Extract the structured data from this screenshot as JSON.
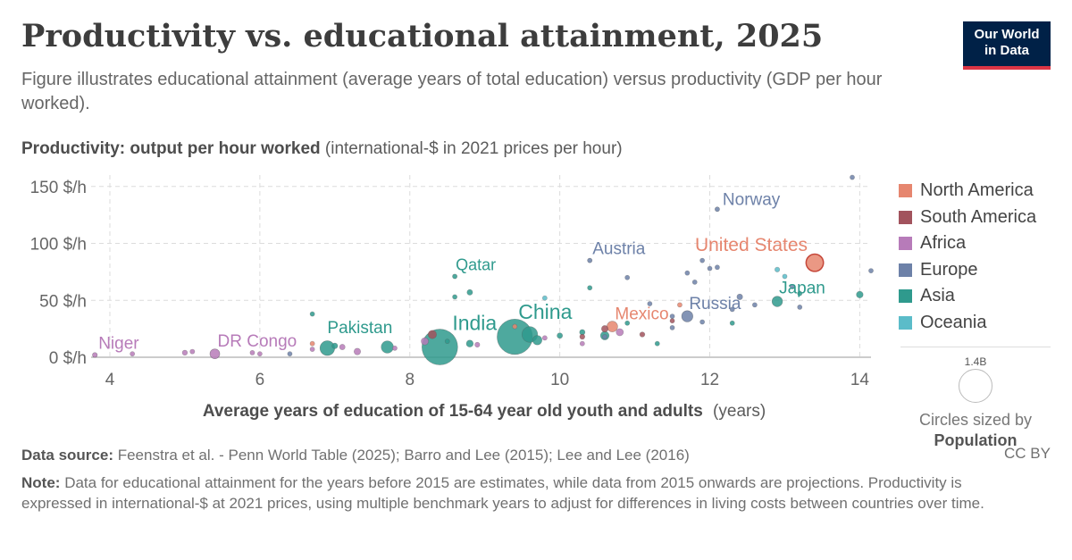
{
  "header": {
    "title": "Productivity vs. educational attainment, 2025",
    "subtitle": "Figure illustrates educational attainment (average years of total education) versus productivity (GDP per hour worked).",
    "logo_line1": "Our World",
    "logo_line2": "in Data"
  },
  "axis": {
    "y_label_bold": "Productivity: output per hour worked",
    "y_label_unit": "(international-$ in 2021 prices per hour)",
    "x_label_bold": "Average years of education of 15-64 year old youth and adults",
    "x_label_unit": "(years)"
  },
  "legend": {
    "items": [
      {
        "label": "North America",
        "color": "#e6866f"
      },
      {
        "label": "South America",
        "color": "#a2535d"
      },
      {
        "label": "Africa",
        "color": "#b77bb9"
      },
      {
        "label": "Europe",
        "color": "#6d81a8"
      },
      {
        "label": "Asia",
        "color": "#2f9a8d"
      },
      {
        "label": "Oceania",
        "color": "#5bbcc9"
      }
    ]
  },
  "size_key": {
    "value": "1.4B",
    "caption": "Circles sized by",
    "caption_bold": "Population"
  },
  "footer": {
    "source_label": "Data source:",
    "source_text": "Feenstra et al. - Penn World Table (2025); Barro and Lee (2015); Lee and Lee (2016)",
    "license": "CC BY",
    "note_label": "Note:",
    "note_text": "Data for educational attainment for the years before 2015 are estimates, while data from 2015 onwards are projections. Productivity is expressed in international-$ at 2021 prices, using multiple benchmark years to adjust for differences in living costs between countries over time."
  },
  "chart_data": {
    "type": "scatter",
    "xlim": [
      3.75,
      14.15
    ],
    "ylim": [
      0,
      160
    ],
    "x_ticks": [
      4,
      6,
      8,
      10,
      12,
      14
    ],
    "y_ticks": [
      {
        "value": 0,
        "label": "0 $/h"
      },
      {
        "value": 50,
        "label": "50 $/h"
      },
      {
        "value": 100,
        "label": "100 $/h"
      },
      {
        "value": 150,
        "label": "150 $/h"
      }
    ],
    "grid": true,
    "legend_position": "right",
    "region_colors": {
      "North America": "#e6866f",
      "South America": "#a2535d",
      "Africa": "#b77bb9",
      "Europe": "#6d81a8",
      "Asia": "#2f9a8d",
      "Oceania": "#5bbcc9"
    },
    "points": [
      {
        "label": "Niger",
        "region": "Africa",
        "x": 3.8,
        "y": 2,
        "pop": 27
      },
      {
        "label": "DR Congo",
        "region": "Africa",
        "x": 5.4,
        "y": 3,
        "pop": 110
      },
      {
        "label": "Pakistan",
        "region": "Asia",
        "x": 6.9,
        "y": 8,
        "pop": 245
      },
      {
        "label": "India",
        "region": "Asia",
        "x": 8.4,
        "y": 9,
        "pop": 1440
      },
      {
        "label": "Qatar",
        "region": "Asia",
        "x": 8.6,
        "y": 71,
        "pop": 3
      },
      {
        "label": "China",
        "region": "Asia",
        "x": 9.4,
        "y": 18,
        "pop": 1410
      },
      {
        "label": "Mexico",
        "region": "North America",
        "x": 10.7,
        "y": 27,
        "pop": 130
      },
      {
        "label": "Austria",
        "region": "Europe",
        "x": 10.4,
        "y": 85,
        "pop": 9
      },
      {
        "label": "Russia",
        "region": "Europe",
        "x": 11.7,
        "y": 36,
        "pop": 144
      },
      {
        "label": "Norway",
        "region": "Europe",
        "x": 12.1,
        "y": 130,
        "pop": 5.5
      },
      {
        "label": "United States",
        "region": "North America",
        "x": 13.4,
        "y": 83,
        "pop": 340
      },
      {
        "label": "Japan",
        "region": "Asia",
        "x": 12.9,
        "y": 49,
        "pop": 124
      },
      {
        "label": "",
        "region": "Africa",
        "x": 4.3,
        "y": 3,
        "pop": 20
      },
      {
        "label": "",
        "region": "Africa",
        "x": 5.0,
        "y": 4,
        "pop": 30
      },
      {
        "label": "",
        "region": "Africa",
        "x": 5.1,
        "y": 5,
        "pop": 25
      },
      {
        "label": "",
        "region": "Africa",
        "x": 5.9,
        "y": 4,
        "pop": 15
      },
      {
        "label": "",
        "region": "Africa",
        "x": 6.0,
        "y": 3,
        "pop": 12
      },
      {
        "label": "",
        "region": "Africa",
        "x": 6.7,
        "y": 7,
        "pop": 18
      },
      {
        "label": "",
        "region": "Africa",
        "x": 7.1,
        "y": 9,
        "pop": 35
      },
      {
        "label": "",
        "region": "Africa",
        "x": 7.3,
        "y": 5,
        "pop": 50
      },
      {
        "label": "",
        "region": "Africa",
        "x": 7.8,
        "y": 8,
        "pop": 22
      },
      {
        "label": "",
        "region": "Africa",
        "x": 8.2,
        "y": 14,
        "pop": 60
      },
      {
        "label": "",
        "region": "Africa",
        "x": 8.9,
        "y": 11,
        "pop": 28
      },
      {
        "label": "",
        "region": "Africa",
        "x": 9.8,
        "y": 17,
        "pop": 25
      },
      {
        "label": "",
        "region": "Africa",
        "x": 10.3,
        "y": 12,
        "pop": 12
      },
      {
        "label": "",
        "region": "Africa",
        "x": 10.8,
        "y": 22,
        "pop": 60
      },
      {
        "label": "",
        "region": "Asia",
        "x": 6.7,
        "y": 38,
        "pop": 10
      },
      {
        "label": "",
        "region": "Asia",
        "x": 7.0,
        "y": 10,
        "pop": 38
      },
      {
        "label": "",
        "region": "Asia",
        "x": 7.7,
        "y": 9,
        "pop": 170
      },
      {
        "label": "",
        "region": "Asia",
        "x": 8.5,
        "y": 14,
        "pop": 20
      },
      {
        "label": "",
        "region": "Asia",
        "x": 8.6,
        "y": 53,
        "pop": 4
      },
      {
        "label": "",
        "region": "Asia",
        "x": 8.8,
        "y": 57,
        "pop": 36
      },
      {
        "label": "",
        "region": "Asia",
        "x": 8.8,
        "y": 12,
        "pop": 55
      },
      {
        "label": "",
        "region": "Asia",
        "x": 9.7,
        "y": 15,
        "pop": 100
      },
      {
        "label": "",
        "region": "Asia",
        "x": 9.6,
        "y": 20,
        "pop": 280
      },
      {
        "label": "",
        "region": "Asia",
        "x": 10.0,
        "y": 19,
        "pop": 35
      },
      {
        "label": "",
        "region": "Asia",
        "x": 10.3,
        "y": 22,
        "pop": 34
      },
      {
        "label": "",
        "region": "Asia",
        "x": 10.4,
        "y": 61,
        "pop": 10
      },
      {
        "label": "",
        "region": "Asia",
        "x": 10.6,
        "y": 19,
        "pop": 85
      },
      {
        "label": "",
        "region": "Asia",
        "x": 10.9,
        "y": 30,
        "pop": 15
      },
      {
        "label": "",
        "region": "Asia",
        "x": 11.3,
        "y": 12,
        "pop": 20
      },
      {
        "label": "",
        "region": "Asia",
        "x": 12.3,
        "y": 30,
        "pop": 10
      },
      {
        "label": "",
        "region": "Asia",
        "x": 14.0,
        "y": 55,
        "pop": 52
      },
      {
        "label": "",
        "region": "Asia",
        "x": 13.2,
        "y": 56,
        "pop": 10
      },
      {
        "label": "",
        "region": "South America",
        "x": 8.3,
        "y": 20,
        "pop": 80
      },
      {
        "label": "",
        "region": "South America",
        "x": 10.3,
        "y": 18,
        "pop": 30
      },
      {
        "label": "",
        "region": "South America",
        "x": 10.6,
        "y": 25,
        "pop": 50
      },
      {
        "label": "",
        "region": "South America",
        "x": 11.1,
        "y": 20,
        "pop": 30
      },
      {
        "label": "",
        "region": "South America",
        "x": 11.5,
        "y": 32,
        "pop": 10
      },
      {
        "label": "",
        "region": "North America",
        "x": 6.7,
        "y": 12,
        "pop": 12
      },
      {
        "label": "",
        "region": "North America",
        "x": 9.4,
        "y": 27,
        "pop": 10
      },
      {
        "label": "",
        "region": "North America",
        "x": 11.6,
        "y": 46,
        "pop": 8
      },
      {
        "label": "",
        "region": "Europe",
        "x": 6.4,
        "y": 3,
        "pop": 5
      },
      {
        "label": "",
        "region": "Europe",
        "x": 10.6,
        "y": 18,
        "pop": 15
      },
      {
        "label": "",
        "region": "Europe",
        "x": 10.9,
        "y": 70,
        "pop": 11
      },
      {
        "label": "",
        "region": "Europe",
        "x": 11.2,
        "y": 47,
        "pop": 10
      },
      {
        "label": "",
        "region": "Europe",
        "x": 11.5,
        "y": 36,
        "pop": 20
      },
      {
        "label": "",
        "region": "Europe",
        "x": 11.7,
        "y": 74,
        "pop": 8
      },
      {
        "label": "",
        "region": "Europe",
        "x": 11.8,
        "y": 66,
        "pop": 17
      },
      {
        "label": "",
        "region": "Europe",
        "x": 11.9,
        "y": 85,
        "pop": 9
      },
      {
        "label": "",
        "region": "Europe",
        "x": 12.0,
        "y": 78,
        "pop": 12
      },
      {
        "label": "",
        "region": "Europe",
        "x": 12.1,
        "y": 79,
        "pop": 18
      },
      {
        "label": "",
        "region": "Europe",
        "x": 12.4,
        "y": 53,
        "pop": 38
      },
      {
        "label": "",
        "region": "Europe",
        "x": 12.6,
        "y": 46,
        "pop": 10
      },
      {
        "label": "",
        "region": "Europe",
        "x": 12.3,
        "y": 42,
        "pop": 10
      },
      {
        "label": "",
        "region": "Europe",
        "x": 11.5,
        "y": 26,
        "pop": 10
      },
      {
        "label": "",
        "region": "Europe",
        "x": 11.9,
        "y": 31,
        "pop": 20
      },
      {
        "label": "",
        "region": "Europe",
        "x": 13.1,
        "y": 62,
        "pop": 13
      },
      {
        "label": "",
        "region": "Europe",
        "x": 13.2,
        "y": 44,
        "pop": 10
      },
      {
        "label": "",
        "region": "Europe",
        "x": 13.9,
        "y": 158,
        "pop": 1
      },
      {
        "label": "",
        "region": "Europe",
        "x": 14.15,
        "y": 76,
        "pop": 10
      },
      {
        "label": "",
        "region": "Oceania",
        "x": 12.9,
        "y": 77,
        "pop": 27
      },
      {
        "label": "",
        "region": "Oceania",
        "x": 13.0,
        "y": 71,
        "pop": 5
      },
      {
        "label": "",
        "region": "Oceania",
        "x": 9.8,
        "y": 52,
        "pop": 5
      }
    ]
  }
}
